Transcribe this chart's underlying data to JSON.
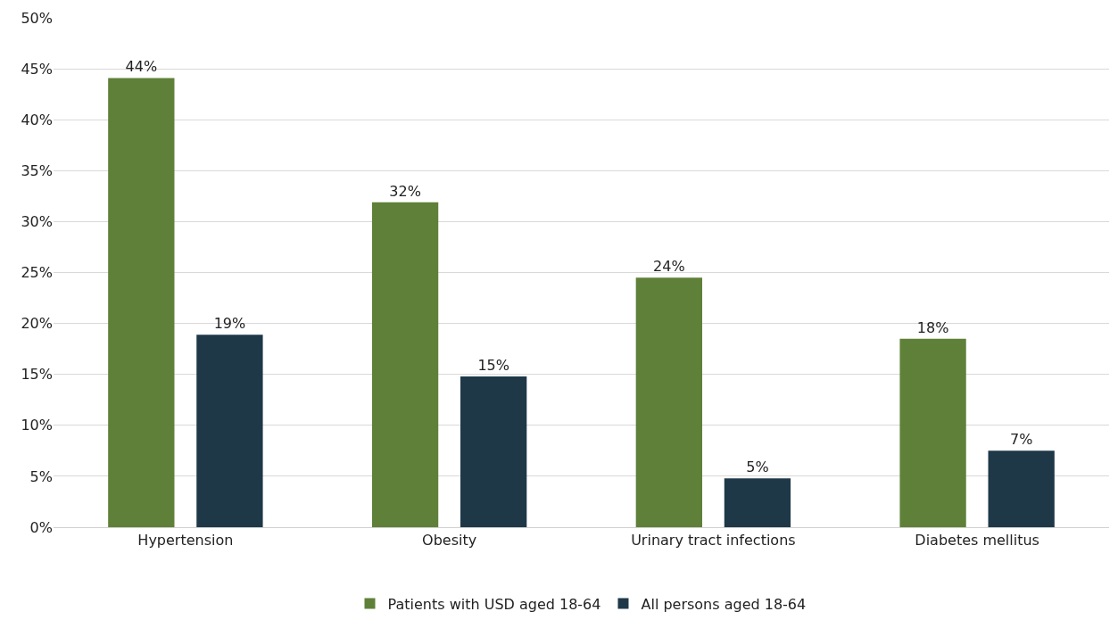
{
  "chart_data": {
    "type": "bar",
    "categories": [
      "Hypertension",
      "Obesity",
      "Urinary tract infections",
      "Diabetes mellitus"
    ],
    "series": [
      {
        "name": "Patients with USD aged 18-64",
        "color": "#5f8038",
        "values": [
          44.1,
          31.9,
          24.5,
          18.5
        ],
        "value_labels": [
          "44%",
          "32%",
          "24%",
          "18%"
        ]
      },
      {
        "name": "All persons aged 18-64",
        "color": "#1e3848",
        "values": [
          18.9,
          14.8,
          4.8,
          7.5
        ],
        "value_labels": [
          "19%",
          "15%",
          "5%",
          "7%"
        ]
      }
    ],
    "ylim": [
      0,
      50
    ],
    "yticks": [
      {
        "value": 0,
        "label": "0%"
      },
      {
        "value": 5,
        "label": "5%"
      },
      {
        "value": 10,
        "label": "10%"
      },
      {
        "value": 15,
        "label": "15%"
      },
      {
        "value": 20,
        "label": "20%"
      },
      {
        "value": 25,
        "label": "25%"
      },
      {
        "value": 30,
        "label": "30%"
      },
      {
        "value": 35,
        "label": "35%"
      },
      {
        "value": 40,
        "label": "40%"
      },
      {
        "value": 45,
        "label": "45%"
      },
      {
        "value": 50,
        "label": "50%"
      }
    ],
    "grid": "y",
    "legend": "bottom"
  }
}
